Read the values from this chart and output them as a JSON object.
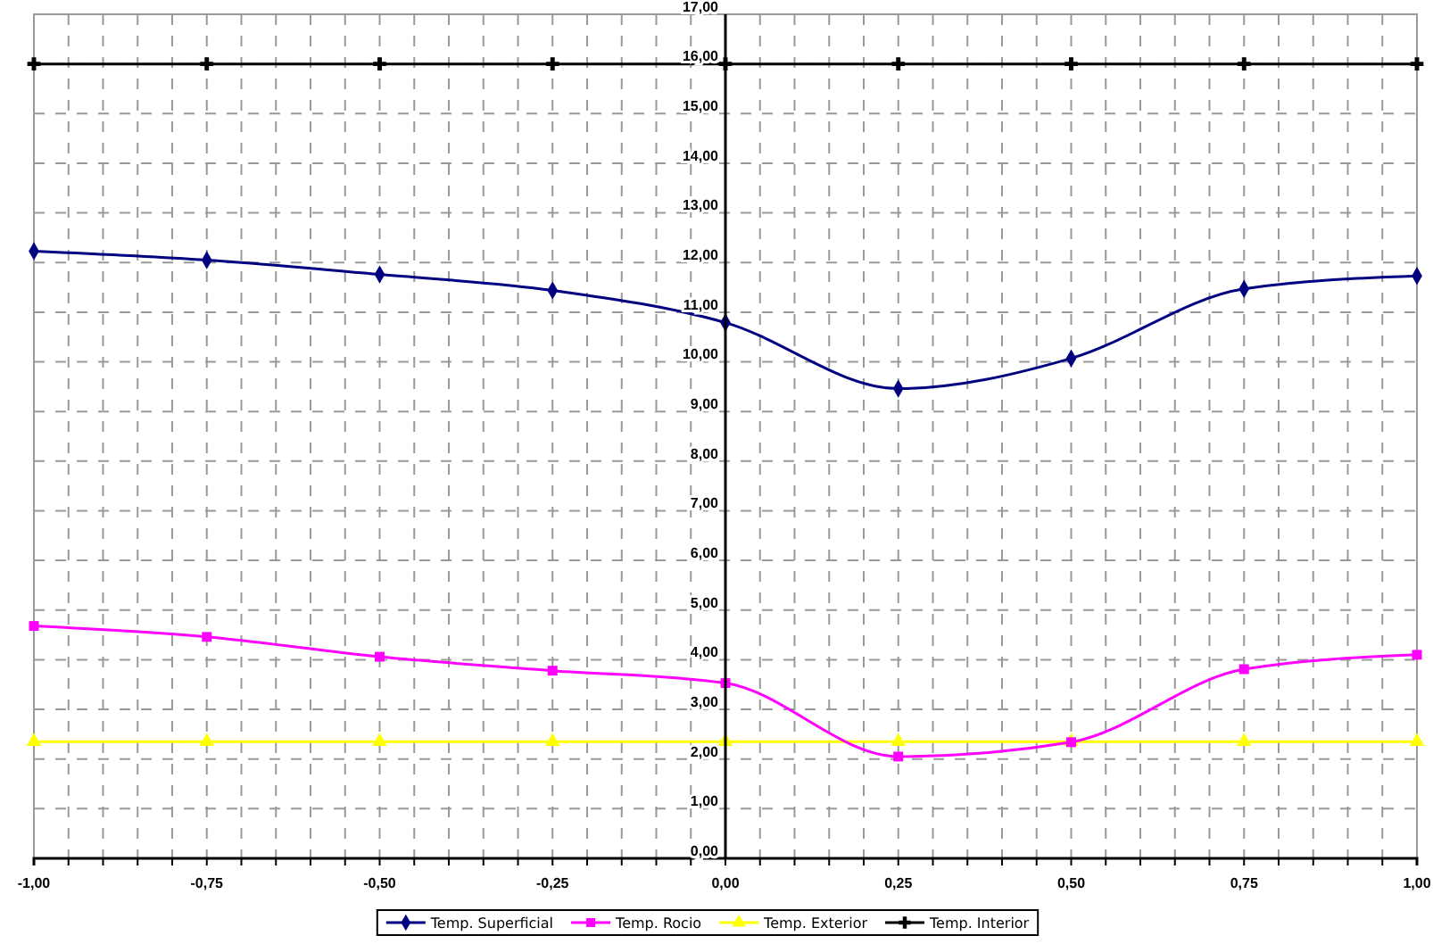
{
  "chart_data": {
    "type": "line",
    "x": [
      -1,
      -0.75,
      -0.5,
      -0.25,
      0,
      0.25,
      0.5,
      0.75,
      1
    ],
    "series": [
      {
        "name": "Temp. Superficial",
        "color": "#000080",
        "marker": "diamond",
        "values": [
          12.23,
          12.05,
          11.76,
          11.44,
          10.79,
          9.46,
          10.07,
          11.47,
          11.73
        ]
      },
      {
        "name": "Temp. Rocio",
        "color": "#ff00ff",
        "marker": "square",
        "values": [
          4.68,
          4.46,
          4.06,
          3.78,
          3.53,
          2.05,
          2.34,
          3.81,
          4.1
        ]
      },
      {
        "name": "Temp. Exterior",
        "color": "#ffff00",
        "marker": "triangle",
        "values": [
          2.35,
          2.35,
          2.35,
          2.35,
          2.35,
          2.35,
          2.35,
          2.35,
          2.35
        ]
      },
      {
        "name": "Temp. Interior",
        "color": "#000000",
        "marker": "cross",
        "values": [
          16,
          16,
          16,
          16,
          16,
          16,
          16,
          16,
          16
        ]
      }
    ],
    "xlim": [
      -1,
      1
    ],
    "xticks": [
      {
        "value": -1,
        "label": "-1,00"
      },
      {
        "value": -0.95,
        "label": null
      },
      {
        "value": -0.9,
        "label": null
      },
      {
        "value": -0.85,
        "label": null
      },
      {
        "value": -0.8,
        "label": null
      },
      {
        "value": -0.75,
        "label": "-0,75"
      },
      {
        "value": -0.7,
        "label": null
      },
      {
        "value": -0.65,
        "label": null
      },
      {
        "value": -0.6,
        "label": null
      },
      {
        "value": -0.55,
        "label": null
      },
      {
        "value": -0.5,
        "label": "-0,50"
      },
      {
        "value": -0.45,
        "label": null
      },
      {
        "value": -0.4,
        "label": null
      },
      {
        "value": -0.35,
        "label": null
      },
      {
        "value": -0.3,
        "label": null
      },
      {
        "value": -0.25,
        "label": "-0,25"
      },
      {
        "value": -0.2,
        "label": null
      },
      {
        "value": -0.15,
        "label": null
      },
      {
        "value": -0.1,
        "label": null
      },
      {
        "value": -0.05,
        "label": null
      },
      {
        "value": 0,
        "label": "0,00"
      },
      {
        "value": 0.05,
        "label": null
      },
      {
        "value": 0.1,
        "label": null
      },
      {
        "value": 0.15,
        "label": null
      },
      {
        "value": 0.2,
        "label": null
      },
      {
        "value": 0.25,
        "label": "0,25"
      },
      {
        "value": 0.3,
        "label": null
      },
      {
        "value": 0.35,
        "label": null
      },
      {
        "value": 0.4,
        "label": null
      },
      {
        "value": 0.45,
        "label": null
      },
      {
        "value": 0.5,
        "label": "0,50"
      },
      {
        "value": 0.55,
        "label": null
      },
      {
        "value": 0.6,
        "label": null
      },
      {
        "value": 0.65,
        "label": null
      },
      {
        "value": 0.7,
        "label": null
      },
      {
        "value": 0.75,
        "label": "0,75"
      },
      {
        "value": 0.8,
        "label": null
      },
      {
        "value": 0.85,
        "label": null
      },
      {
        "value": 0.9,
        "label": null
      },
      {
        "value": 0.95,
        "label": null
      },
      {
        "value": 1,
        "label": "1,00"
      }
    ],
    "ylim": [
      0,
      17
    ],
    "yticks": [
      {
        "value": 0,
        "label": "0,00"
      },
      {
        "value": 1,
        "label": "1,00"
      },
      {
        "value": 2,
        "label": "2,00"
      },
      {
        "value": 3,
        "label": "3,00"
      },
      {
        "value": 4,
        "label": "4,00"
      },
      {
        "value": 5,
        "label": "5,00"
      },
      {
        "value": 6,
        "label": "6,00"
      },
      {
        "value": 7,
        "label": "7,00"
      },
      {
        "value": 8,
        "label": "8,00"
      },
      {
        "value": 9,
        "label": "9,00"
      },
      {
        "value": 10,
        "label": "10,00"
      },
      {
        "value": 11,
        "label": "11,00"
      },
      {
        "value": 12,
        "label": "12,00"
      },
      {
        "value": 13,
        "label": "13,00"
      },
      {
        "value": 14,
        "label": "14,00"
      },
      {
        "value": 15,
        "label": "15,00"
      },
      {
        "value": 16,
        "label": "16,00"
      },
      {
        "value": 17,
        "label": "17,00"
      }
    ],
    "grid": true,
    "legend": "bottom",
    "line_style": "solid"
  }
}
